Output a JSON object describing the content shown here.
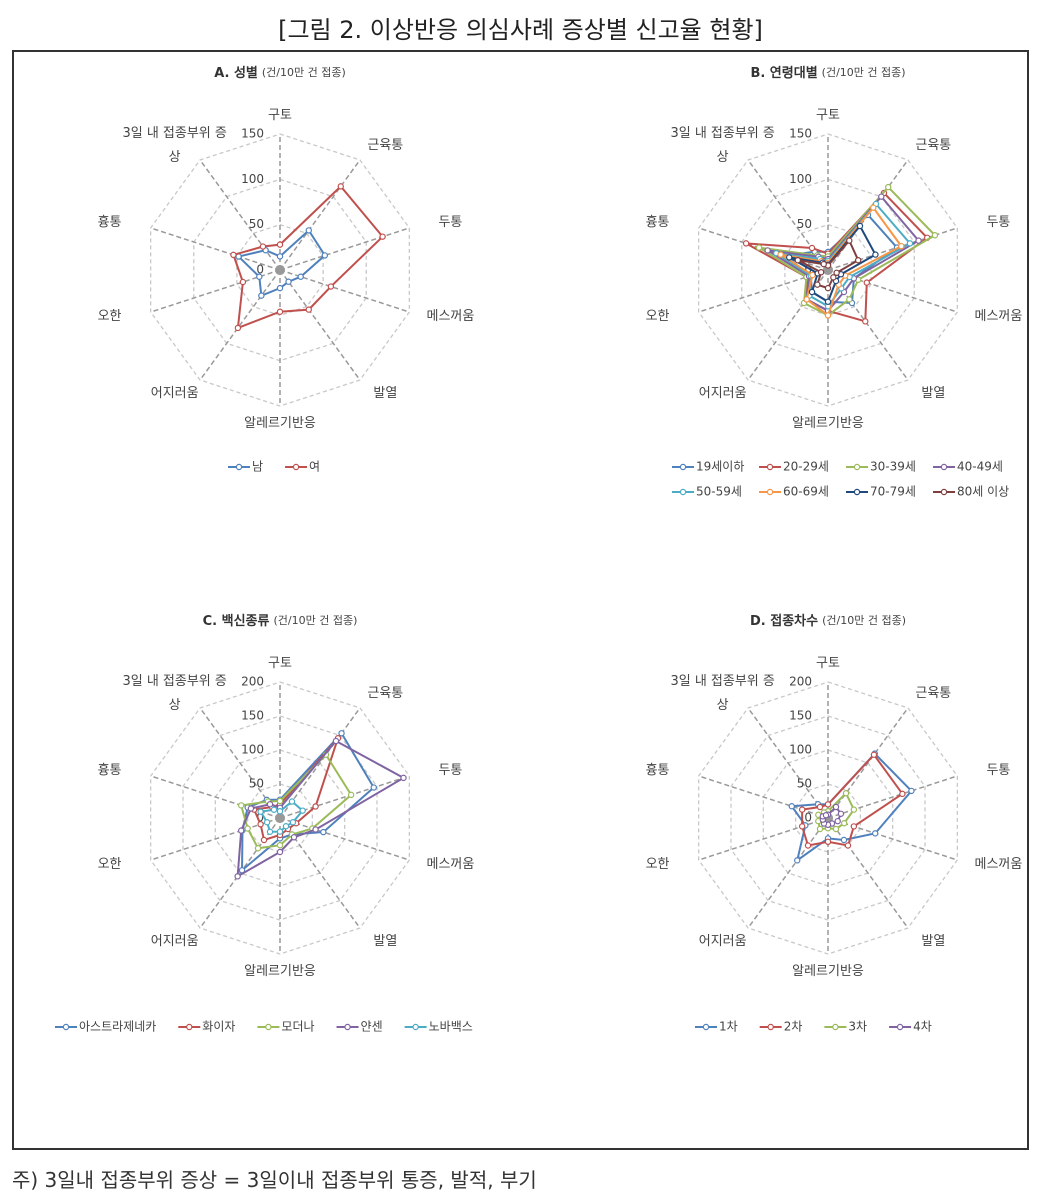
{
  "page": {
    "title": "[그림 2. 이상반응 의심사례 증상별 신고율 현황]",
    "footnote": "주) 3일내 접종부위 증상 = 3일이내 접종부위 통증, 발적, 부기"
  },
  "chart_data": [
    {
      "type": "radar",
      "title": "A. 성별",
      "unit": "(건/10만 건 접종)",
      "categories": [
        "구토",
        "근육통",
        "두통",
        "메스꺼움",
        "발열",
        "알레르기반응",
        "어지러움",
        "오한",
        "흉통",
        "3일 내 접종부위 증상"
      ],
      "ylim": [
        0,
        150
      ],
      "yticks": [
        0,
        50,
        100,
        150
      ],
      "grid": true,
      "series": [
        {
          "name": "남",
          "color": "#4f81bd",
          "values": [
            15,
            54,
            52,
            24,
            16,
            20,
            35,
            24,
            48,
            27
          ]
        },
        {
          "name": "여",
          "color": "#c0504d",
          "values": [
            28,
            114,
            119,
            59,
            54,
            46,
            79,
            43,
            54,
            32
          ]
        }
      ]
    },
    {
      "type": "radar",
      "title": "B. 연령대별",
      "unit": "(건/10만 건 접종)",
      "categories": [
        "구토",
        "근육통",
        "두통",
        "메스꺼움",
        "발열",
        "알레르기반응",
        "어지러움",
        "오한",
        "흉통",
        "3일 내 접종부위 증상"
      ],
      "ylim": [
        0,
        150
      ],
      "yticks": [
        0,
        50,
        100,
        150
      ],
      "grid": true,
      "series": [
        {
          "name": "19세이하",
          "color": "#4f81bd",
          "values": [
            20,
            75,
            80,
            30,
            45,
            35,
            30,
            20,
            50,
            25
          ]
        },
        {
          "name": "20-29세",
          "color": "#c0504d",
          "values": [
            18,
            105,
            115,
            45,
            70,
            45,
            40,
            25,
            95,
            30
          ]
        },
        {
          "name": "30-39세",
          "color": "#9bbb59",
          "values": [
            15,
            113,
            124,
            35,
            40,
            50,
            45,
            25,
            80,
            20
          ]
        },
        {
          "name": "40-49세",
          "color": "#8064a2",
          "values": [
            12,
            100,
            105,
            30,
            30,
            45,
            40,
            22,
            70,
            18
          ]
        },
        {
          "name": "50-59세",
          "color": "#4bacc6",
          "values": [
            10,
            90,
            95,
            25,
            25,
            40,
            35,
            20,
            60,
            15
          ]
        },
        {
          "name": "60-69세",
          "color": "#f79646",
          "values": [
            8,
            85,
            85,
            20,
            20,
            50,
            40,
            18,
            55,
            12
          ]
        },
        {
          "name": "70-79세",
          "color": "#1f497d",
          "values": [
            6,
            60,
            55,
            15,
            15,
            35,
            30,
            12,
            45,
            10
          ]
        },
        {
          "name": "80세 이상",
          "color": "#7f3f3f",
          "values": [
            5,
            40,
            35,
            10,
            10,
            20,
            20,
            8,
            35,
            8
          ]
        }
      ]
    },
    {
      "type": "radar",
      "title": "C. 백신종류",
      "unit": "(건/10만 건 접종)",
      "categories": [
        "구토",
        "근육통",
        "두통",
        "메스꺼움",
        "발열",
        "알레르기반응",
        "어지러움",
        "오한",
        "흉통",
        "3일 내 접종부위 증상"
      ],
      "ylim": [
        0,
        200
      ],
      "yticks": [
        0,
        50,
        100,
        150,
        200
      ],
      "grid": true,
      "series": [
        {
          "name": "아스트라제네카",
          "color": "#4f81bd",
          "values": [
            27,
            154,
            145,
            67,
            30,
            30,
            95,
            58,
            50,
            33
          ]
        },
        {
          "name": "화이자",
          "color": "#c0504d",
          "values": [
            20,
            145,
            55,
            25,
            20,
            25,
            40,
            30,
            40,
            20
          ]
        },
        {
          "name": "모더나",
          "color": "#9bbb59",
          "values": [
            25,
            115,
            110,
            50,
            30,
            40,
            55,
            50,
            60,
            30
          ]
        },
        {
          "name": "얀센",
          "color": "#8064a2",
          "values": [
            15,
            140,
            191,
            55,
            35,
            50,
            106,
            60,
            45,
            25
          ]
        },
        {
          "name": "노바백스",
          "color": "#4bacc6",
          "values": [
            10,
            30,
            35,
            20,
            15,
            20,
            25,
            20,
            30,
            15
          ]
        }
      ]
    },
    {
      "type": "radar",
      "title": "D. 접종차수",
      "unit": "(건/10만 건 접종)",
      "categories": [
        "구토",
        "근육통",
        "두통",
        "메스꺼움",
        "발열",
        "알레르기반응",
        "어지러움",
        "오한",
        "흉통",
        "3일 내 접종부위 증상"
      ],
      "ylim": [
        0,
        200
      ],
      "yticks": [
        0,
        50,
        100,
        150,
        200
      ],
      "grid": true,
      "series": [
        {
          "name": "1차",
          "color": "#4f81bd",
          "values": [
            20,
            117,
            129,
            73,
            40,
            30,
            77,
            35,
            56,
            25
          ]
        },
        {
          "name": "2차",
          "color": "#c0504d",
          "values": [
            20,
            115,
            115,
            40,
            50,
            35,
            50,
            40,
            40,
            20
          ]
        },
        {
          "name": "3차",
          "color": "#9bbb59",
          "values": [
            10,
            45,
            40,
            25,
            20,
            15,
            20,
            15,
            15,
            10
          ]
        },
        {
          "name": "4차",
          "color": "#8064a2",
          "values": [
            5,
            20,
            20,
            15,
            10,
            10,
            10,
            8,
            8,
            5
          ]
        }
      ]
    }
  ]
}
